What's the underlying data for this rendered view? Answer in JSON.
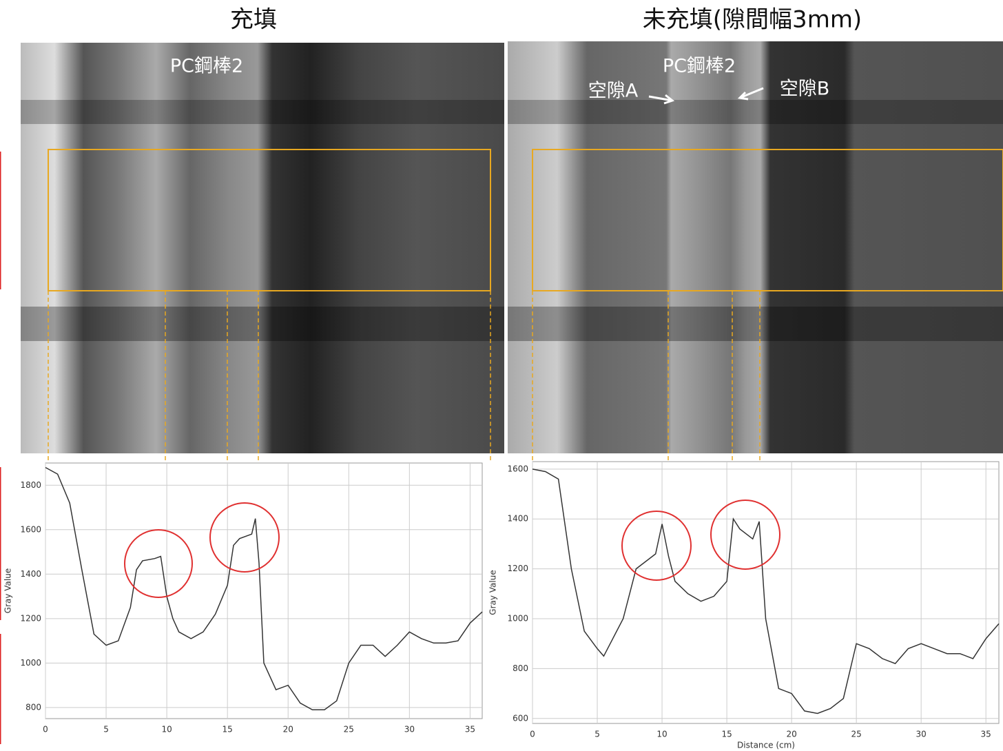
{
  "chart_data": [
    {
      "type": "line",
      "title": "充填",
      "annotations": [
        "PC鋼棒2"
      ],
      "ylabel": "Gray Value",
      "x": [
        0,
        1,
        2,
        3,
        4,
        5,
        6,
        7,
        7.5,
        8,
        9,
        9.5,
        10,
        10.5,
        11,
        12,
        13,
        14,
        15,
        15.5,
        16,
        17,
        17.3,
        17.6,
        18,
        19,
        20,
        21,
        22,
        23,
        24,
        25,
        26,
        27,
        28,
        29,
        30,
        31,
        32,
        33,
        34,
        35,
        36
      ],
      "series": [
        {
          "color": "#333333",
          "values": [
            1880,
            1850,
            1720,
            1420,
            1130,
            1080,
            1100,
            1250,
            1420,
            1460,
            1470,
            1480,
            1300,
            1200,
            1140,
            1110,
            1140,
            1220,
            1350,
            1530,
            1560,
            1580,
            1650,
            1450,
            1000,
            880,
            900,
            820,
            790,
            790,
            830,
            1000,
            1080,
            1080,
            1030,
            1080,
            1140,
            1110,
            1090,
            1090,
            1100,
            1180,
            1230
          ]
        }
      ],
      "xlim": [
        0,
        36
      ],
      "ylim": [
        750,
        1900
      ],
      "xticks": [
        0,
        5,
        10,
        15,
        20,
        25,
        30,
        35
      ],
      "yticks": [
        800,
        1000,
        1200,
        1400,
        1600,
        1800
      ],
      "grid": true
    },
    {
      "type": "line",
      "title": "未充填(隙間幅3mm)",
      "annotations": [
        "PC鋼棒2",
        "空隙A",
        "空隙B"
      ],
      "ylabel": "Gray Value",
      "xlabel": "Distance (cm)",
      "x": [
        0,
        1,
        2,
        3,
        4,
        5,
        5.5,
        6,
        7,
        8,
        9,
        9.5,
        10,
        10.5,
        11,
        12,
        13,
        14,
        15,
        15.5,
        16,
        17,
        17.5,
        18,
        19,
        20,
        21,
        22,
        23,
        24,
        25,
        26,
        27,
        28,
        29,
        30,
        31,
        32,
        33,
        34,
        35,
        36
      ],
      "series": [
        {
          "color": "#333333",
          "values": [
            1600,
            1590,
            1560,
            1200,
            950,
            880,
            850,
            900,
            1000,
            1200,
            1240,
            1260,
            1380,
            1250,
            1150,
            1100,
            1070,
            1090,
            1150,
            1400,
            1360,
            1320,
            1390,
            1000,
            720,
            700,
            630,
            620,
            640,
            680,
            900,
            880,
            840,
            820,
            880,
            900,
            880,
            860,
            860,
            840,
            920,
            980
          ]
        }
      ],
      "xlim": [
        0,
        36
      ],
      "ylim": [
        580,
        1630
      ],
      "xticks": [
        0,
        5,
        10,
        15,
        20,
        25,
        30,
        35
      ],
      "yticks": [
        600,
        800,
        1000,
        1200,
        1400,
        1600
      ],
      "grid": true
    }
  ]
}
